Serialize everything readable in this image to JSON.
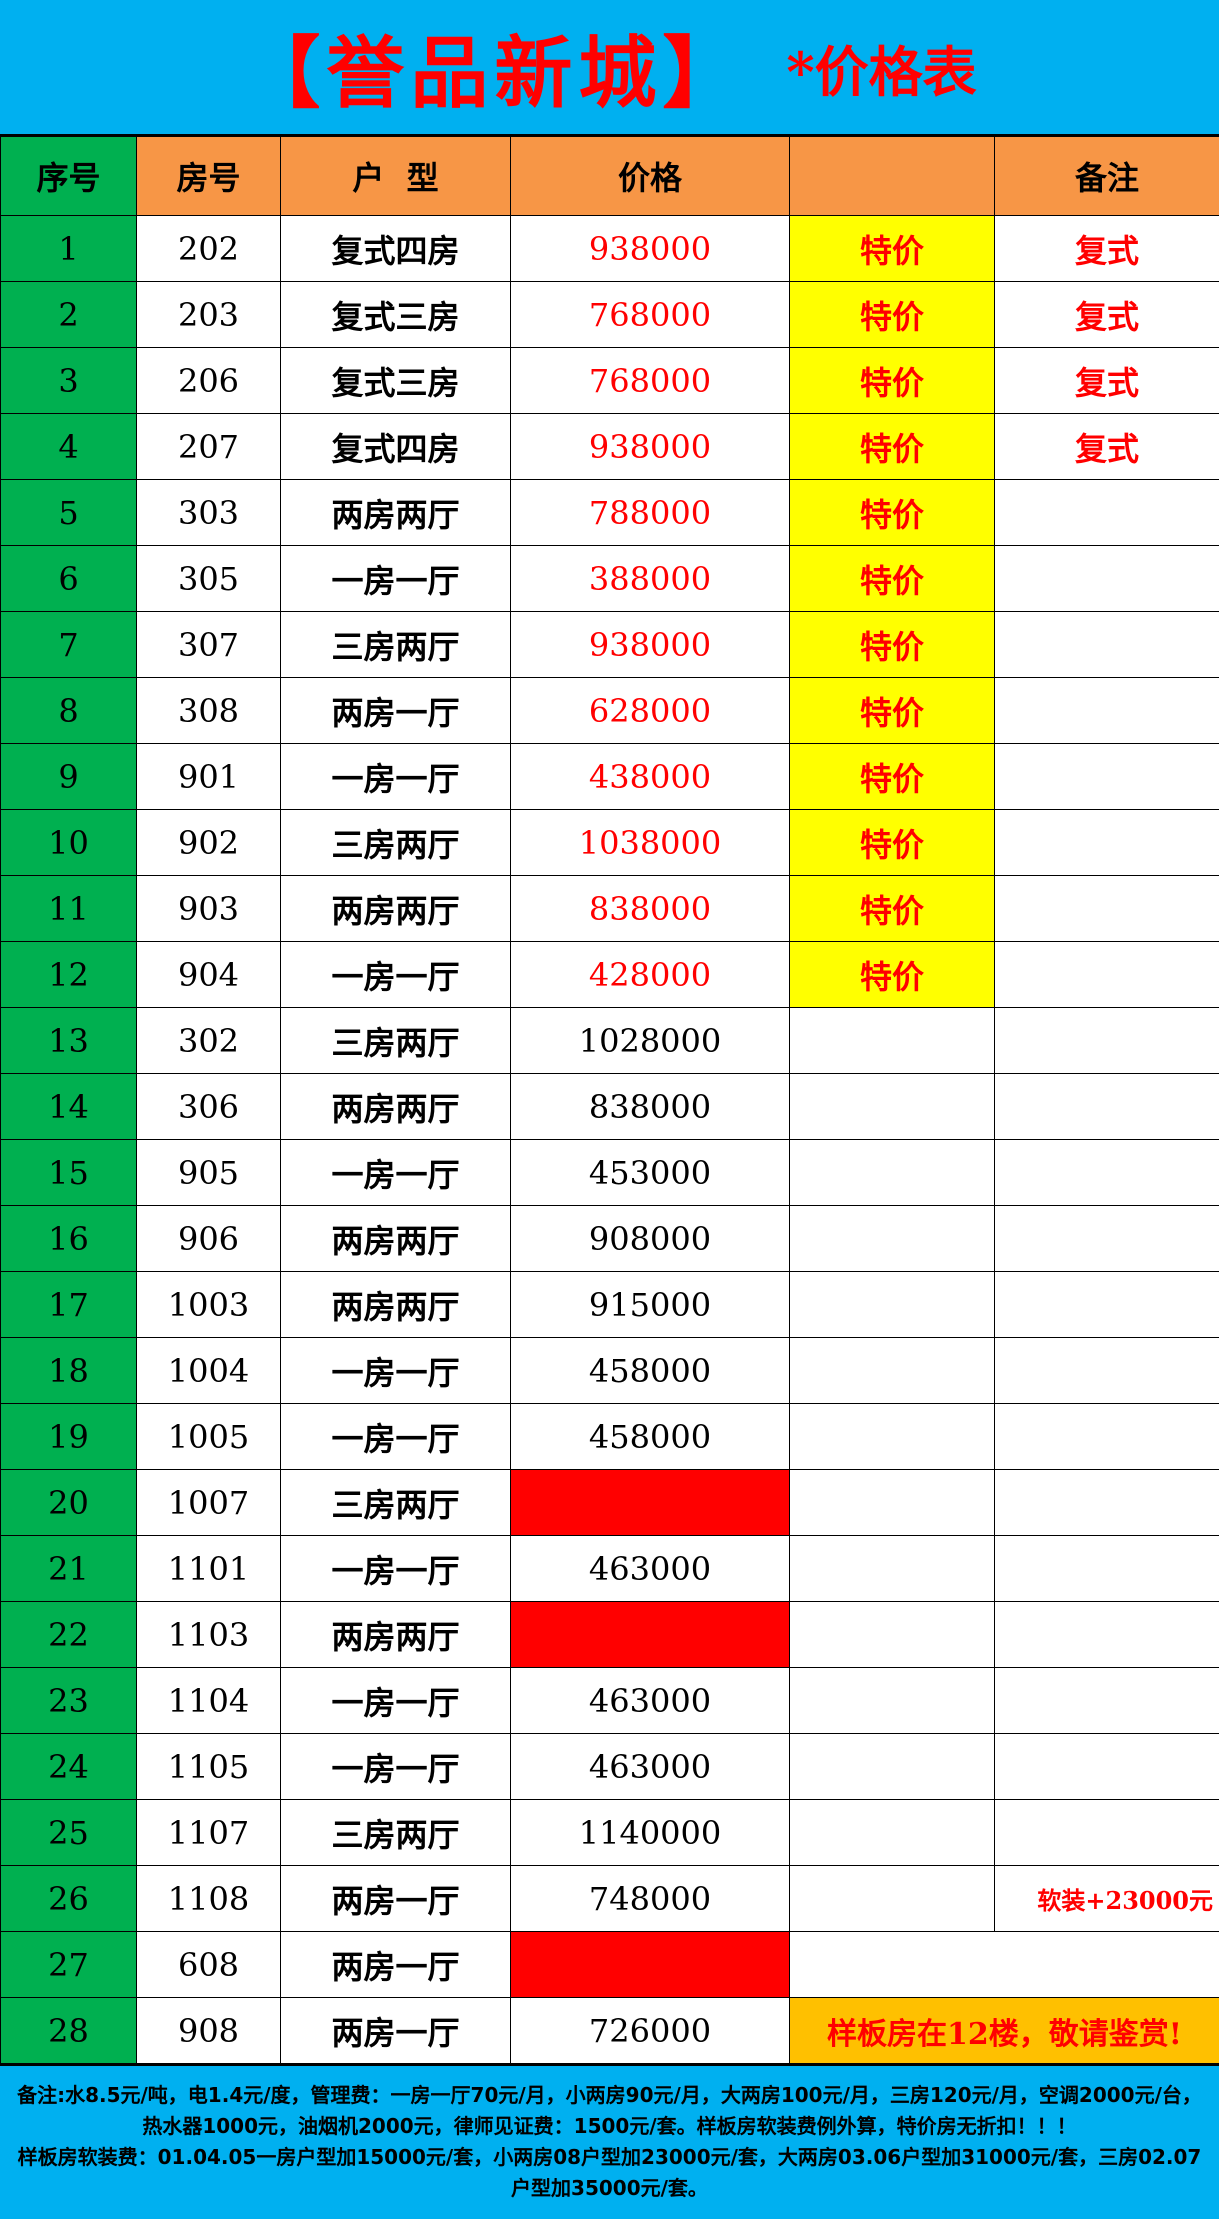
{
  "title": {
    "main": "【誉品新城】",
    "sub": "*价格表",
    "color": "#ff0000"
  },
  "headers": [
    "序号",
    "房号",
    "户  型",
    "价格",
    "",
    "备注"
  ],
  "rows": [
    {
      "no": "1",
      "room": "202",
      "type": "复式四房",
      "price": "938000",
      "tag": "特价",
      "note": "复式"
    },
    {
      "no": "2",
      "room": "203",
      "type": "复式三房",
      "price": "768000",
      "tag": "特价",
      "note": "复式"
    },
    {
      "no": "3",
      "room": "206",
      "type": "复式三房",
      "price": "768000",
      "tag": "特价",
      "note": "复式"
    },
    {
      "no": "4",
      "room": "207",
      "type": "复式四房",
      "price": "938000",
      "tag": "特价",
      "note": "复式"
    },
    {
      "no": "5",
      "room": "303",
      "type": "两房两厅",
      "price": "788000",
      "tag": "特价",
      "note": ""
    },
    {
      "no": "6",
      "room": "305",
      "type": "一房一厅",
      "price": "388000",
      "tag": "特价",
      "note": ""
    },
    {
      "no": "7",
      "room": "307",
      "type": "三房两厅",
      "price": "938000",
      "tag": "特价",
      "note": ""
    },
    {
      "no": "8",
      "room": "308",
      "type": "两房一厅",
      "price": "628000",
      "tag": "特价",
      "note": ""
    },
    {
      "no": "9",
      "room": "901",
      "type": "一房一厅",
      "price": "438000",
      "tag": "特价",
      "note": ""
    },
    {
      "no": "10",
      "room": "902",
      "type": "三房两厅",
      "price": "1038000",
      "tag": "特价",
      "note": ""
    },
    {
      "no": "11",
      "room": "903",
      "type": "两房两厅",
      "price": "838000",
      "tag": "特价",
      "note": ""
    },
    {
      "no": "12",
      "room": "904",
      "type": "一房一厅",
      "price": "428000",
      "tag": "特价",
      "note": ""
    },
    {
      "no": "13",
      "room": "302",
      "type": "三房两厅",
      "price": "1028000",
      "tag": "",
      "note": ""
    },
    {
      "no": "14",
      "room": "306",
      "type": "两房两厅",
      "price": "838000",
      "tag": "",
      "note": ""
    },
    {
      "no": "15",
      "room": "905",
      "type": "一房一厅",
      "price": "453000",
      "tag": "",
      "note": ""
    },
    {
      "no": "16",
      "room": "906",
      "type": "两房两厅",
      "price": "908000",
      "tag": "",
      "note": ""
    },
    {
      "no": "17",
      "room": "1003",
      "type": "两房两厅",
      "price": "915000",
      "tag": "",
      "note": ""
    },
    {
      "no": "18",
      "room": "1004",
      "type": "一房一厅",
      "price": "458000",
      "tag": "",
      "note": ""
    },
    {
      "no": "19",
      "room": "1005",
      "type": "一房一厅",
      "price": "458000",
      "tag": "",
      "note": ""
    },
    {
      "no": "20",
      "room": "1007",
      "type": "三房两厅",
      "price": "",
      "sold": true,
      "tag": "",
      "note": ""
    },
    {
      "no": "21",
      "room": "1101",
      "type": "一房一厅",
      "price": "463000",
      "tag": "",
      "note": ""
    },
    {
      "no": "22",
      "room": "1103",
      "type": "两房两厅",
      "price": "",
      "sold": true,
      "tag": "",
      "note": ""
    },
    {
      "no": "23",
      "room": "1104",
      "type": "一房一厅",
      "price": "463000",
      "tag": "",
      "note": ""
    },
    {
      "no": "24",
      "room": "1105",
      "type": "一房一厅",
      "price": "463000",
      "tag": "",
      "note": ""
    },
    {
      "no": "25",
      "room": "1107",
      "type": "三房两厅",
      "price": "1140000",
      "tag": "",
      "note": ""
    },
    {
      "no": "26",
      "room": "1108",
      "type": "两房一厅",
      "price": "748000",
      "tag": "",
      "note": "软装+23000元"
    },
    {
      "no": "27",
      "room": "608",
      "type": "两房一厅",
      "price": "",
      "sold": true,
      "merged": true,
      "note": ""
    },
    {
      "no": "28",
      "room": "908",
      "type": "两房一厅",
      "price": "726000",
      "merged": true,
      "note": "样板房在12楼，敬请鉴赏!"
    }
  ],
  "footer": [
    "备注:水8.5元/吨，电1.4元/度，管理费：一房一厅70元/月，小两房90元/月，大两房100元/月，三房120元/月，空调2000元/台，热水器1000元，油烟机2000元，律师见证费：1500元/套。样板房软装费例外算，特价房无折扣！！！",
    "样板房软装费：01.04.05一房户型加15000元/套，小两房08户型加23000元/套，大两房03.06户型加31000元/套，三房02.07户型加35000元/套。"
  ],
  "colors": {
    "title_bg": "#00b0f0",
    "header": "#f79646",
    "seq": "#00b050",
    "special": "#ffff00",
    "sold": "#ff0000",
    "showroom": "#ffc000"
  }
}
